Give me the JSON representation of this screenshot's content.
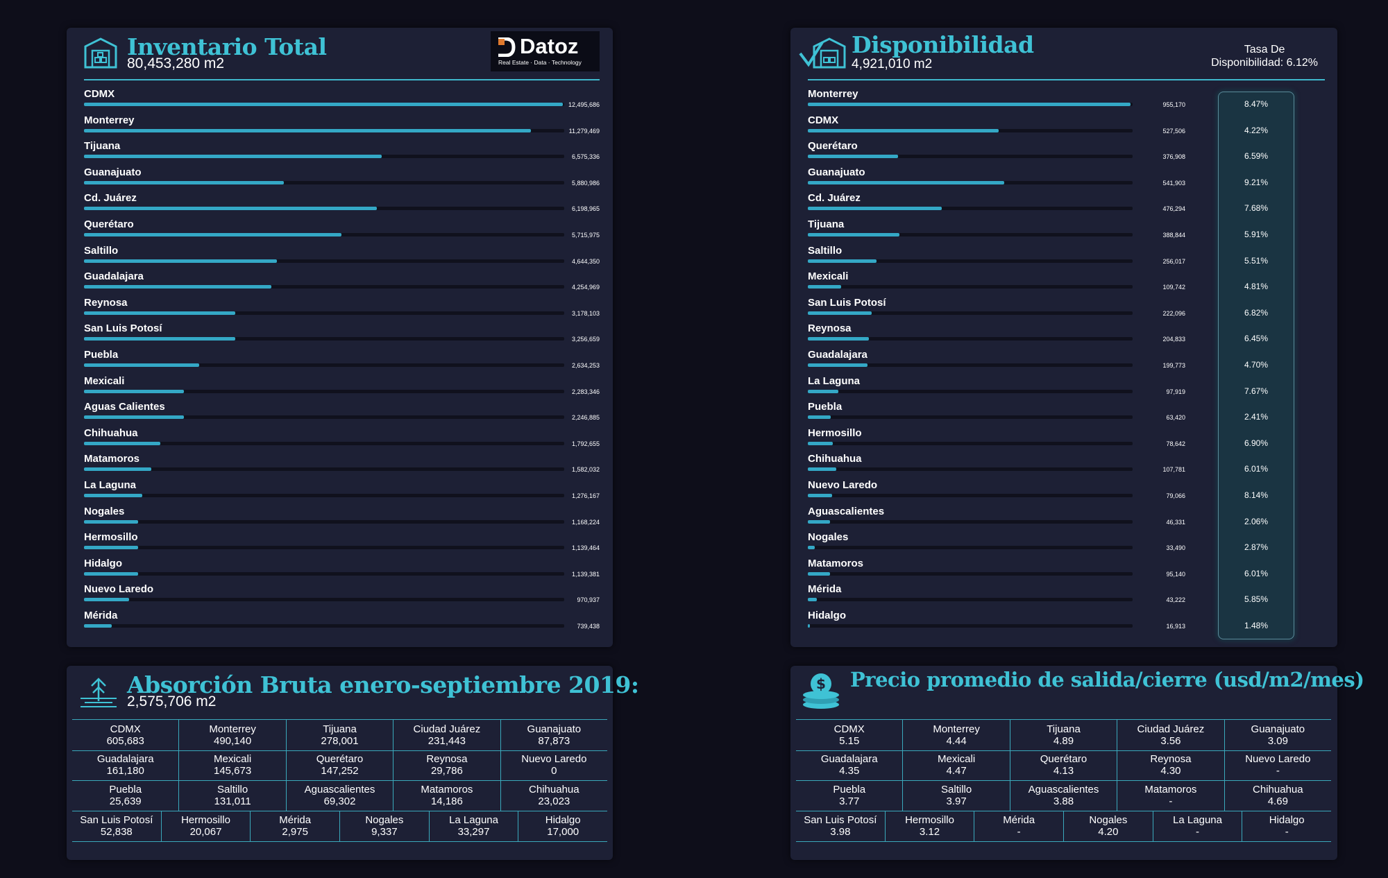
{
  "colors": {
    "background": "#0e0e1a",
    "panel": "#1d2035",
    "accent": "#3fc2d5",
    "bar": "#34a8c6"
  },
  "inventario": {
    "title": "Inventario Total",
    "subtitle": "80,453,280 m2",
    "icon": "warehouse-icon",
    "logo": {
      "name": "Datoz",
      "tagline": "Real Estate · Data · Technology"
    }
  },
  "disponibilidad": {
    "title": "Disponibilidad",
    "subtitle": "4,921,010 m2",
    "icon": "warehouse-check-icon",
    "tasa_label": "Tasa De",
    "tasa_value": "Disponibilidad: 6.12%"
  },
  "absorcion": {
    "title": "Absorción Bruta enero-septiembre 2019:",
    "subtitle": "2,575,706 m2",
    "icon": "arrow-up-icon",
    "rows": [
      [
        {
          "city": "CDMX",
          "value": "605,683"
        },
        {
          "city": "Monterrey",
          "value": "490,140"
        },
        {
          "city": "Tijuana",
          "value": "278,001"
        },
        {
          "city": "Ciudad Juárez",
          "value": "231,443"
        },
        {
          "city": "Guanajuato",
          "value": "87,873"
        }
      ],
      [
        {
          "city": "Guadalajara",
          "value": "161,180"
        },
        {
          "city": "Mexicali",
          "value": "145,673"
        },
        {
          "city": "Querétaro",
          "value": "147,252"
        },
        {
          "city": "Reynosa",
          "value": "29,786"
        },
        {
          "city": "Nuevo Laredo",
          "value": "0"
        }
      ],
      [
        {
          "city": "Puebla",
          "value": "25,639"
        },
        {
          "city": "Saltillo",
          "value": "131,011"
        },
        {
          "city": "Aguascalientes",
          "value": "69,302"
        },
        {
          "city": "Matamoros",
          "value": "14,186"
        },
        {
          "city": "Chihuahua",
          "value": "23,023"
        }
      ],
      [
        {
          "city": "San Luis Potosí",
          "value": "52,838"
        },
        {
          "city": "Hermosillo",
          "value": "20,067"
        },
        {
          "city": "Mérida",
          "value": "2,975"
        },
        {
          "city": "Nogales",
          "value": "9,337"
        },
        {
          "city": "La Laguna",
          "value": "33,297"
        },
        {
          "city": "Hidalgo",
          "value": "17,000"
        }
      ]
    ]
  },
  "precio": {
    "title": "Precio promedio de salida/cierre (usd/m2/mes)",
    "icon": "coins-icon",
    "rows": [
      [
        {
          "city": "CDMX",
          "value": "5.15"
        },
        {
          "city": "Monterrey",
          "value": "4.44"
        },
        {
          "city": "Tijuana",
          "value": "4.89"
        },
        {
          "city": "Ciudad Juárez",
          "value": "3.56"
        },
        {
          "city": "Guanajuato",
          "value": "3.09"
        }
      ],
      [
        {
          "city": "Guadalajara",
          "value": "4.35"
        },
        {
          "city": "Mexicali",
          "value": "4.47"
        },
        {
          "city": "Querétaro",
          "value": "4.13"
        },
        {
          "city": "Reynosa",
          "value": "4.30"
        },
        {
          "city": "Nuevo Laredo",
          "value": "-"
        }
      ],
      [
        {
          "city": "Puebla",
          "value": "3.77"
        },
        {
          "city": "Saltillo",
          "value": "3.97"
        },
        {
          "city": "Aguascalientes",
          "value": "3.88"
        },
        {
          "city": "Matamoros",
          "value": "-"
        },
        {
          "city": "Chihuahua",
          "value": "4.69"
        }
      ],
      [
        {
          "city": "San Luis Potosí",
          "value": "3.98"
        },
        {
          "city": "Hermosillo",
          "value": "3.12"
        },
        {
          "city": "Mérida",
          "value": "-"
        },
        {
          "city": "Nogales",
          "value": "4.20"
        },
        {
          "city": "La Laguna",
          "value": "-"
        },
        {
          "city": "Hidalgo",
          "value": "-"
        }
      ]
    ]
  },
  "chart_data": [
    {
      "type": "bar",
      "title": "Inventario Total",
      "orientation": "horizontal",
      "categories": [
        "CDMX",
        "Monterrey",
        "Tijuana",
        "Guanajuato",
        "Cd. Juárez",
        "Querétaro",
        "Saltillo",
        "Guadalajara",
        "Reynosa",
        "San Luis Potosí",
        "Puebla",
        "Mexicali",
        "Aguas Calientes",
        "Chihuahua",
        "Matamoros",
        "La Laguna",
        "Nogales",
        "Hermosillo",
        "Hidalgo",
        "Nuevo Laredo",
        "Mérida"
      ],
      "values": [
        12495686,
        11279469,
        6575336,
        5880986,
        6198965,
        5715975,
        4644350,
        4254969,
        3178103,
        3256659,
        2634253,
        2283346,
        2246885,
        1792655,
        1582032,
        1276167,
        1168224,
        1139464,
        1139381,
        970937,
        739438
      ],
      "value_labels": [
        "12,495,686",
        "11,279,469",
        "6,575,336",
        "5,880,986",
        "6,198,965",
        "5,715,975",
        "4,644,350",
        "4,254,969",
        "3,178,103",
        "3,256,659",
        "2,634,253",
        "2,283,346",
        "2,246,885",
        "1,792,655",
        "1,582,032",
        "1,276,167",
        "1,168,224",
        "1,139,464",
        "1,139,381",
        "970,937",
        "739,438"
      ],
      "bar_fractions": [
        1.0,
        0.934,
        0.622,
        0.418,
        0.611,
        0.537,
        0.403,
        0.392,
        0.316,
        0.316,
        0.241,
        0.209,
        0.209,
        0.16,
        0.141,
        0.122,
        0.113,
        0.113,
        0.113,
        0.094,
        0.058
      ]
    },
    {
      "type": "bar",
      "title": "Disponibilidad",
      "orientation": "horizontal",
      "categories": [
        "Monterrey",
        "CDMX",
        "Querétaro",
        "Guanajuato",
        "Cd. Juárez",
        "Tijuana",
        "Saltillo",
        "Mexicali",
        "San Luis Potosí",
        "Reynosa",
        "Guadalajara",
        "La Laguna",
        "Puebla",
        "Hermosillo",
        "Chihuahua",
        "Nuevo Laredo",
        "Aguascalientes",
        "Nogales",
        "Matamoros",
        "Mérida",
        "Hidalgo"
      ],
      "values": [
        955170,
        527506,
        376908,
        541903,
        476294,
        388844,
        256017,
        109742,
        222096,
        204833,
        199773,
        97919,
        63420,
        78642,
        107781,
        79066,
        46331,
        33490,
        95140,
        43222,
        16913
      ],
      "value_labels": [
        "955,170",
        "527,506",
        "376,908",
        "541,903",
        "476,294",
        "388,844",
        "256,017",
        "109,742",
        "222,096",
        "204,833",
        "199,773",
        "97,919",
        "63,420",
        "78,642",
        "107,781",
        "79,066",
        "46,331",
        "33,490",
        "95,140",
        "43,222",
        "16,913"
      ],
      "bar_fractions": [
        1.0,
        0.592,
        0.28,
        0.609,
        0.415,
        0.283,
        0.213,
        0.103,
        0.197,
        0.189,
        0.186,
        0.094,
        0.072,
        0.078,
        0.088,
        0.075,
        0.069,
        0.022,
        0.069,
        0.028,
        0.006
      ],
      "rates": [
        "8.47%",
        "4.22%",
        "6.59%",
        "9.21%",
        "7.68%",
        "5.91%",
        "5.51%",
        "4.81%",
        "6.82%",
        "6.45%",
        "4.70%",
        "7.67%",
        "2.41%",
        "6.90%",
        "6.01%",
        "8.14%",
        "2.06%",
        "2.87%",
        "6.01%",
        "5.85%",
        "1.48%"
      ]
    }
  ]
}
